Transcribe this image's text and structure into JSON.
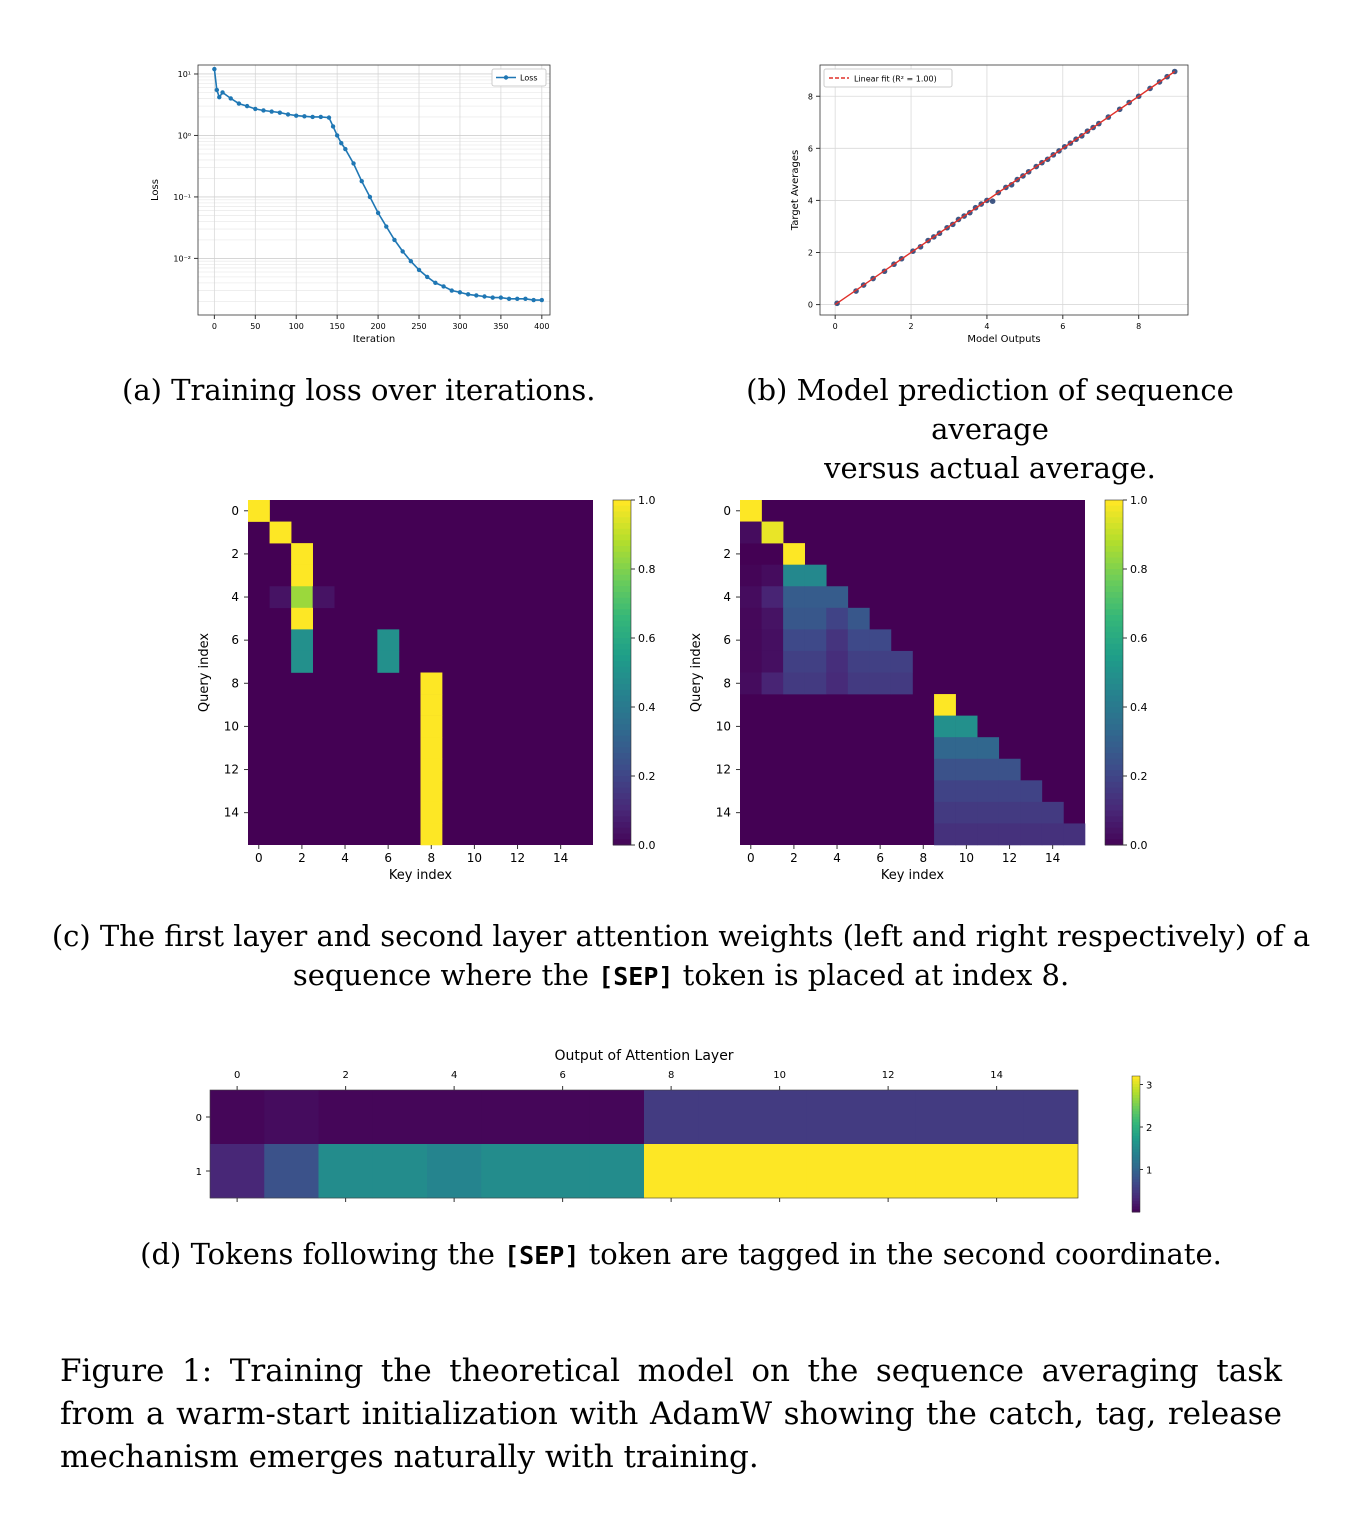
{
  "panels": {
    "a": {
      "caption": "(a) Training loss over iterations.",
      "chart_data": {
        "type": "line",
        "xlabel": "Iteration",
        "ylabel": "Loss",
        "yscale": "log",
        "xlim": [
          -20,
          410
        ],
        "ylim": [
          0.0012,
          14
        ],
        "xticks": [
          0,
          50,
          100,
          150,
          200,
          250,
          300,
          350,
          400
        ],
        "yticks": [
          10,
          1,
          0.1,
          0.01
        ],
        "ytick_labels": [
          "10¹",
          "10⁰",
          "10⁻¹",
          "10⁻²"
        ],
        "grid": true,
        "legend": "top-right",
        "color": "#1f77b4",
        "series": [
          {
            "name": "Loss",
            "x": [
              0,
              3,
              6,
              10,
              20,
              30,
              40,
              50,
              60,
              70,
              80,
              90,
              100,
              110,
              120,
              130,
              140,
              145,
              150,
              155,
              160,
              170,
              180,
              190,
              200,
              210,
              220,
              230,
              240,
              250,
              260,
              270,
              280,
              290,
              300,
              310,
              320,
              330,
              340,
              350,
              360,
              370,
              380,
              390,
              400
            ],
            "y": [
              12,
              5.5,
              4.2,
              5.0,
              4.0,
              3.3,
              3.0,
              2.7,
              2.55,
              2.45,
              2.35,
              2.2,
              2.1,
              2.05,
              2.0,
              2.0,
              1.95,
              1.4,
              1.0,
              0.75,
              0.6,
              0.35,
              0.18,
              0.1,
              0.055,
              0.033,
              0.02,
              0.013,
              0.009,
              0.0065,
              0.005,
              0.004,
              0.0035,
              0.003,
              0.0028,
              0.0026,
              0.0025,
              0.0024,
              0.0023,
              0.0023,
              0.0022,
              0.0022,
              0.0022,
              0.0021,
              0.0021
            ]
          }
        ]
      }
    },
    "b": {
      "caption_lines": [
        "(b) Model prediction of sequence average",
        "versus actual average."
      ],
      "chart_data": {
        "type": "scatter",
        "xlabel": "Model Outputs",
        "ylabel": "Target Averages",
        "xlim": [
          -0.4,
          9.3
        ],
        "ylim": [
          -0.4,
          9.2
        ],
        "xticks": [
          0,
          2,
          4,
          6,
          8
        ],
        "yticks": [
          0,
          2,
          4,
          6,
          8
        ],
        "grid": true,
        "legend": "top-left",
        "fit_label": "Linear fit (R² = 1.00)",
        "fit_line": {
          "slope": 1.0,
          "intercept": 0.0,
          "x": [
            0.0,
            8.95
          ]
        },
        "marker_color": "#1f3a6e",
        "fit_color": "#e0302a",
        "points": {
          "x": [
            0.05,
            0.55,
            0.75,
            1.0,
            1.3,
            1.55,
            1.75,
            2.05,
            2.25,
            2.45,
            2.6,
            2.75,
            2.95,
            3.1,
            3.25,
            3.4,
            3.55,
            3.7,
            3.85,
            4.0,
            4.15,
            4.3,
            4.5,
            4.65,
            4.8,
            4.95,
            5.1,
            5.3,
            5.45,
            5.6,
            5.75,
            5.9,
            6.05,
            6.2,
            6.35,
            6.5,
            6.65,
            6.8,
            6.95,
            7.2,
            7.5,
            7.75,
            8.0,
            8.3,
            8.55,
            8.75,
            8.95
          ],
          "y": [
            0.05,
            0.52,
            0.75,
            1.0,
            1.28,
            1.55,
            1.76,
            2.05,
            2.22,
            2.46,
            2.6,
            2.74,
            2.95,
            3.08,
            3.27,
            3.4,
            3.53,
            3.72,
            3.86,
            4.0,
            3.97,
            4.3,
            4.5,
            4.6,
            4.8,
            4.94,
            5.1,
            5.3,
            5.45,
            5.58,
            5.75,
            5.9,
            6.06,
            6.2,
            6.35,
            6.48,
            6.66,
            6.8,
            6.95,
            7.2,
            7.5,
            7.76,
            8.0,
            8.3,
            8.55,
            8.75,
            8.95
          ]
        }
      }
    },
    "c": {
      "caption_line1": "(c) The first layer and second layer attention weights (left and right respectively) of a",
      "caption_line2": {
        "pre": "sequence where the ",
        "token": "[SEP]",
        "post": " token is placed at index 8."
      },
      "chart_data": [
        {
          "type": "heatmap",
          "xlabel": "Key index",
          "ylabel": "Query index",
          "xticks": [
            0,
            2,
            4,
            6,
            8,
            10,
            12,
            14
          ],
          "yticks": [
            0,
            2,
            4,
            6,
            8,
            10,
            12,
            14
          ],
          "colorbar": {
            "min": 0.0,
            "max": 1.0,
            "ticks": [
              "0.0",
              "0.2",
              "0.4",
              "0.6",
              "0.8",
              "1.0"
            ],
            "colormap": "viridis"
          },
          "cells": [
            {
              "row": 0,
              "col": 0,
              "value": 1.0
            },
            {
              "row": 1,
              "col": 1,
              "value": 1.0
            },
            {
              "row": 2,
              "col": 2,
              "value": 1.0
            },
            {
              "row": 3,
              "col": 2,
              "value": 1.0
            },
            {
              "row": 4,
              "col": 1,
              "value": 0.05
            },
            {
              "row": 4,
              "col": 2,
              "value": 0.85
            },
            {
              "row": 4,
              "col": 3,
              "value": 0.05
            },
            {
              "row": 5,
              "col": 2,
              "value": 1.0
            },
            {
              "row": 6,
              "col": 2,
              "value": 0.5
            },
            {
              "row": 6,
              "col": 6,
              "value": 0.5
            },
            {
              "row": 7,
              "col": 2,
              "value": 0.5
            },
            {
              "row": 7,
              "col": 6,
              "value": 0.5
            },
            {
              "row": 8,
              "col": 8,
              "value": 1.0
            },
            {
              "row": 9,
              "col": 8,
              "value": 1.0
            },
            {
              "row": 10,
              "col": 8,
              "value": 1.0
            },
            {
              "row": 11,
              "col": 8,
              "value": 1.0
            },
            {
              "row": 12,
              "col": 8,
              "value": 1.0
            },
            {
              "row": 13,
              "col": 8,
              "value": 1.0
            },
            {
              "row": 14,
              "col": 8,
              "value": 1.0
            },
            {
              "row": 15,
              "col": 8,
              "value": 1.0
            }
          ]
        },
        {
          "type": "heatmap",
          "xlabel": "Key index",
          "ylabel": "Query index",
          "xticks": [
            0,
            2,
            4,
            6,
            8,
            10,
            12,
            14
          ],
          "yticks": [
            0,
            2,
            4,
            6,
            8,
            10,
            12,
            14
          ],
          "colorbar": {
            "min": 0.0,
            "max": 1.0,
            "ticks": [
              "0.0",
              "0.2",
              "0.4",
              "0.6",
              "0.8",
              "1.0"
            ],
            "colormap": "viridis"
          },
          "cells": [
            {
              "row": 0,
              "col": 0,
              "value": 1.0
            },
            {
              "row": 1,
              "col": 0,
              "value": 0.03
            },
            {
              "row": 1,
              "col": 1,
              "value": 0.97
            },
            {
              "row": 2,
              "col": 2,
              "value": 1.0
            },
            {
              "row": 3,
              "col": 0,
              "value": 0.01
            },
            {
              "row": 3,
              "col": 1,
              "value": 0.03
            },
            {
              "row": 3,
              "col": 2,
              "value": 0.47
            },
            {
              "row": 3,
              "col": 3,
              "value": 0.47
            },
            {
              "row": 4,
              "col": 0,
              "value": 0.03
            },
            {
              "row": 4,
              "col": 1,
              "value": 0.1
            },
            {
              "row": 4,
              "col": 2,
              "value": 0.29
            },
            {
              "row": 4,
              "col": 3,
              "value": 0.29
            },
            {
              "row": 4,
              "col": 4,
              "value": 0.29
            },
            {
              "row": 5,
              "col": 0,
              "value": 0.02
            },
            {
              "row": 5,
              "col": 1,
              "value": 0.05
            },
            {
              "row": 5,
              "col": 2,
              "value": 0.27
            },
            {
              "row": 5,
              "col": 3,
              "value": 0.27
            },
            {
              "row": 5,
              "col": 4,
              "value": 0.2
            },
            {
              "row": 5,
              "col": 5,
              "value": 0.27
            },
            {
              "row": 6,
              "col": 0,
              "value": 0.02
            },
            {
              "row": 6,
              "col": 1,
              "value": 0.04
            },
            {
              "row": 6,
              "col": 2,
              "value": 0.22
            },
            {
              "row": 6,
              "col": 3,
              "value": 0.22
            },
            {
              "row": 6,
              "col": 4,
              "value": 0.15
            },
            {
              "row": 6,
              "col": 5,
              "value": 0.22
            },
            {
              "row": 6,
              "col": 6,
              "value": 0.22
            },
            {
              "row": 7,
              "col": 0,
              "value": 0.02
            },
            {
              "row": 7,
              "col": 1,
              "value": 0.04
            },
            {
              "row": 7,
              "col": 2,
              "value": 0.19
            },
            {
              "row": 7,
              "col": 3,
              "value": 0.19
            },
            {
              "row": 7,
              "col": 4,
              "value": 0.13
            },
            {
              "row": 7,
              "col": 5,
              "value": 0.19
            },
            {
              "row": 7,
              "col": 6,
              "value": 0.19
            },
            {
              "row": 7,
              "col": 7,
              "value": 0.19
            },
            {
              "row": 8,
              "col": 0,
              "value": 0.03
            },
            {
              "row": 8,
              "col": 1,
              "value": 0.1
            },
            {
              "row": 8,
              "col": 2,
              "value": 0.17
            },
            {
              "row": 8,
              "col": 3,
              "value": 0.17
            },
            {
              "row": 8,
              "col": 4,
              "value": 0.12
            },
            {
              "row": 8,
              "col": 5,
              "value": 0.17
            },
            {
              "row": 8,
              "col": 6,
              "value": 0.17
            },
            {
              "row": 8,
              "col": 7,
              "value": 0.17
            },
            {
              "row": 9,
              "col": 9,
              "value": 1.0
            },
            {
              "row": 10,
              "col": 9,
              "value": 0.5
            },
            {
              "row": 10,
              "col": 10,
              "value": 0.5
            },
            {
              "row": 11,
              "col": 9,
              "value": 0.33
            },
            {
              "row": 11,
              "col": 10,
              "value": 0.33
            },
            {
              "row": 11,
              "col": 11,
              "value": 0.33
            },
            {
              "row": 12,
              "col": 9,
              "value": 0.25
            },
            {
              "row": 12,
              "col": 10,
              "value": 0.25
            },
            {
              "row": 12,
              "col": 11,
              "value": 0.25
            },
            {
              "row": 12,
              "col": 12,
              "value": 0.25
            },
            {
              "row": 13,
              "col": 9,
              "value": 0.2
            },
            {
              "row": 13,
              "col": 10,
              "value": 0.2
            },
            {
              "row": 13,
              "col": 11,
              "value": 0.2
            },
            {
              "row": 13,
              "col": 12,
              "value": 0.2
            },
            {
              "row": 13,
              "col": 13,
              "value": 0.2
            },
            {
              "row": 14,
              "col": 9,
              "value": 0.17
            },
            {
              "row": 14,
              "col": 10,
              "value": 0.17
            },
            {
              "row": 14,
              "col": 11,
              "value": 0.17
            },
            {
              "row": 14,
              "col": 12,
              "value": 0.17
            },
            {
              "row": 14,
              "col": 13,
              "value": 0.17
            },
            {
              "row": 14,
              "col": 14,
              "value": 0.17
            },
            {
              "row": 15,
              "col": 9,
              "value": 0.14
            },
            {
              "row": 15,
              "col": 10,
              "value": 0.14
            },
            {
              "row": 15,
              "col": 11,
              "value": 0.14
            },
            {
              "row": 15,
              "col": 12,
              "value": 0.14
            },
            {
              "row": 15,
              "col": 13,
              "value": 0.14
            },
            {
              "row": 15,
              "col": 14,
              "value": 0.14
            },
            {
              "row": 15,
              "col": 15,
              "value": 0.14
            }
          ]
        }
      ]
    },
    "d": {
      "caption": {
        "pre": "(d) Tokens following the ",
        "token": "[SEP]",
        "post": " token are tagged in the second coordinate."
      },
      "chart_data": {
        "type": "heatmap",
        "title": "Output of Attention Layer",
        "xticks": [
          0,
          2,
          4,
          6,
          8,
          10,
          12,
          14
        ],
        "yticks": [
          0,
          1
        ],
        "colorbar": {
          "min": 0.0,
          "max": 3.2,
          "ticks": [
            1,
            2,
            3
          ],
          "colormap": "viridis"
        },
        "rows": [
          [
            0.05,
            0.1,
            0.05,
            0.05,
            0.05,
            0.05,
            0.05,
            0.05,
            0.55,
            0.55,
            0.55,
            0.55,
            0.55,
            0.55,
            0.55,
            0.55
          ],
          [
            0.35,
            0.8,
            1.55,
            1.55,
            1.45,
            1.55,
            1.55,
            1.55,
            3.2,
            3.2,
            3.2,
            3.2,
            3.2,
            3.2,
            3.2,
            3.2
          ]
        ]
      }
    }
  },
  "figure_caption": "Figure 1: Training the theoretical model on the sequence averaging task from a warm-start initialization with AdamW showing the catch, tag, release mechanism emerges naturally with training."
}
